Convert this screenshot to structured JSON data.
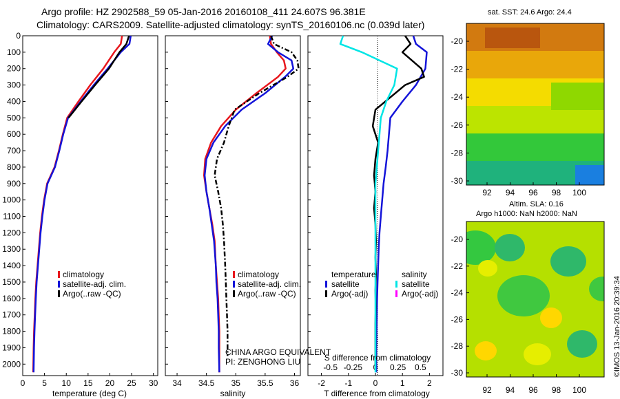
{
  "header": {
    "title_line1": "Argo profile: HZ 2902588_59 05-Jan-2016 20160108_411 24.607S 96.381E",
    "title_line2": "Climatology: CARS2009. Satellite-adjusted climatology: synTS_20160106.nc (0.039d later)"
  },
  "maps": {
    "sst_title": "sat. SST: 24.6 Argo: 24.4",
    "sla_title_line1": "Altim. SLA: 0.16",
    "sla_title_line2": "Argo h1000: NaN h2000: NaN",
    "xticks": [
      "92",
      "94",
      "96",
      "98",
      "100"
    ],
    "yticks": [
      "-20",
      "-22",
      "-24",
      "-26",
      "-28",
      "-30"
    ]
  },
  "timestamp": "©IMOS 13-Jan-2016 20:39:34",
  "colors": {
    "climatology": "#e8171d",
    "satellite": "#1414d9",
    "argo": "#000000",
    "salinity_satellite": "#00e5e5",
    "salinity_argo": "#ff00ff"
  },
  "chart_data": [
    {
      "type": "line",
      "xlabel": "temperature (deg C)",
      "ylabel": "",
      "xlim": [
        0,
        31
      ],
      "ylim": [
        2070,
        0
      ],
      "xticks": [
        "0",
        "5",
        "10",
        "15",
        "20",
        "25",
        "30"
      ],
      "yticks": [
        "0",
        "100",
        "200",
        "300",
        "400",
        "500",
        "600",
        "700",
        "800",
        "900",
        "1000",
        "1100",
        "1200",
        "1300",
        "1400",
        "1500",
        "1600",
        "1700",
        "1800",
        "1900",
        "2000"
      ],
      "legend": [
        "climatology",
        "satellite-adj. clim.",
        "Argo(..raw -QC)"
      ],
      "series": [
        {
          "name": "climatology",
          "x": [
            22.8,
            22.5,
            21.0,
            18.5,
            15.5,
            12.8,
            10.2,
            9.2,
            8.3,
            7.3,
            5.6,
            4.9,
            4.4,
            4.0,
            3.7,
            3.4,
            3.1,
            2.9,
            2.75,
            2.6,
            2.5,
            2.4
          ],
          "y": [
            0,
            50,
            100,
            200,
            300,
            400,
            500,
            600,
            700,
            800,
            900,
            1000,
            1100,
            1200,
            1300,
            1400,
            1500,
            1600,
            1700,
            1800,
            1900,
            2050
          ]
        },
        {
          "name": "satellite-adj. clim.",
          "x": [
            24.8,
            24.5,
            22.5,
            19.5,
            16.3,
            13.3,
            10.4,
            9.3,
            8.4,
            7.4,
            5.7,
            5.0,
            4.5,
            4.1,
            3.8,
            3.5,
            3.2,
            3.0,
            2.85,
            2.7,
            2.6,
            2.5
          ],
          "y": [
            0,
            50,
            100,
            200,
            300,
            400,
            500,
            600,
            700,
            800,
            900,
            1000,
            1100,
            1200,
            1300,
            1400,
            1500,
            1600,
            1700,
            1800,
            1900,
            2050
          ]
        },
        {
          "name": "Argo(..raw -QC)",
          "x": [
            24.4,
            23.8,
            22.2,
            19.8,
            16.6,
            13.5,
            10.5
          ],
          "y": [
            0,
            50,
            100,
            200,
            300,
            400,
            500
          ]
        }
      ]
    },
    {
      "type": "line",
      "xlabel": "salinity",
      "xlim": [
        33.8,
        36.1
      ],
      "ylim": [
        2070,
        0
      ],
      "xticks": [
        "34",
        "34.5",
        "35",
        "35.5",
        "36"
      ],
      "legend": [
        "climatology",
        "satellite-adj. clim.",
        "Argo(..raw -QC)"
      ],
      "annotation_line1": "CHINA ARGO EQUIVALENT",
      "annotation_line2": "PI: ZENGHONG LIU",
      "series": [
        {
          "name": "climatology",
          "x": [
            35.58,
            35.6,
            35.7,
            35.82,
            35.85,
            35.72,
            35.35,
            35.0,
            34.75,
            34.58,
            34.48,
            34.46,
            34.5,
            34.55,
            34.6,
            34.64,
            34.66,
            34.68,
            34.7,
            34.71,
            34.72,
            34.72,
            34.72
          ],
          "y": [
            0,
            50,
            100,
            150,
            200,
            250,
            350,
            450,
            550,
            650,
            750,
            850,
            950,
            1050,
            1150,
            1250,
            1400,
            1500,
            1600,
            1700,
            1800,
            1900,
            2050
          ]
        },
        {
          "name": "satellite-adj. clim.",
          "x": [
            35.62,
            35.55,
            35.72,
            35.95,
            35.98,
            35.84,
            35.5,
            35.1,
            34.82,
            34.62,
            34.5,
            34.47,
            34.5,
            34.55,
            34.59,
            34.63,
            34.66,
            34.67,
            34.69,
            34.7,
            34.71,
            34.71,
            34.72
          ],
          "y": [
            0,
            50,
            100,
            150,
            200,
            250,
            350,
            450,
            550,
            650,
            750,
            850,
            950,
            1050,
            1150,
            1250,
            1400,
            1500,
            1600,
            1700,
            1800,
            1900,
            2050
          ]
        },
        {
          "name": "Argo(..raw -QC)",
          "x": [
            35.6,
            35.65,
            35.95,
            36.05,
            36.07,
            35.88,
            35.4,
            34.98,
            34.88,
            34.8,
            34.68,
            34.64,
            34.7,
            34.75,
            34.78,
            34.8,
            34.82,
            34.83,
            34.84,
            34.85,
            34.86,
            34.86,
            34.86
          ],
          "y": [
            0,
            50,
            100,
            150,
            200,
            250,
            350,
            450,
            550,
            650,
            750,
            850,
            950,
            1050,
            1150,
            1250,
            1400,
            1500,
            1600,
            1700,
            1800,
            1900,
            1950
          ]
        }
      ]
    },
    {
      "type": "line",
      "xlabel": "T difference from climatology",
      "xlabel_top": "S difference from climatology",
      "xlim_T": [
        -2.5,
        2.5
      ],
      "xticks_T": [
        "-2",
        "-1",
        "0",
        "1",
        "2"
      ],
      "xticks_S": [
        "-0.5",
        "-0.25",
        "0",
        "0.25",
        "0.5"
      ],
      "ylim": [
        2070,
        0
      ],
      "legend_temperature_title": "temperature",
      "legend_salinity_title": "salinity",
      "legend_items": [
        "satellite",
        "Argo(-adj)",
        "satellite",
        "Argo(-adj)"
      ],
      "series": [
        {
          "name": "temperature satellite",
          "x": [
            1.4,
            1.5,
            1.9,
            1.85,
            1.5,
            1.0,
            0.55,
            0.5,
            0.45,
            0.38,
            0.3,
            0.25,
            0.2,
            0.15,
            0.12,
            0.1,
            0.08,
            0.06,
            0.05,
            0.04,
            0.03,
            0.03
          ],
          "y": [
            0,
            50,
            100,
            200,
            300,
            400,
            500,
            600,
            700,
            800,
            900,
            1000,
            1100,
            1200,
            1300,
            1400,
            1500,
            1600,
            1700,
            1800,
            1900,
            2050
          ]
        },
        {
          "name": "temperature Argo(-adj)",
          "x": [
            1.1,
            1.3,
            1.0,
            1.7,
            1.8,
            1.1,
            0.0,
            -0.1,
            0.1,
            0.0,
            -0.05,
            0.0,
            -0.05,
            0.0,
            0.02,
            0.0,
            0.02,
            0.0,
            0.01,
            0.0,
            0.0,
            0.0
          ],
          "y": [
            0,
            50,
            100,
            200,
            250,
            300,
            450,
            550,
            650,
            750,
            850,
            950,
            1050,
            1150,
            1250,
            1350,
            1450,
            1550,
            1650,
            1750,
            1850,
            2000
          ]
        },
        {
          "name": "salinity satellite",
          "x": [
            -1.2,
            -1.3,
            -0.5,
            0.8,
            0.7,
            0.4,
            0.2,
            0.15,
            0.1,
            0.05,
            0.0,
            0.0,
            0.0,
            0.0,
            0.0,
            0.0,
            0.0,
            0.0
          ],
          "y": [
            0,
            50,
            100,
            200,
            300,
            400,
            500,
            600,
            700,
            800,
            900,
            1000,
            1200,
            1400,
            1600,
            1800,
            1900,
            2050
          ]
        }
      ]
    }
  ]
}
